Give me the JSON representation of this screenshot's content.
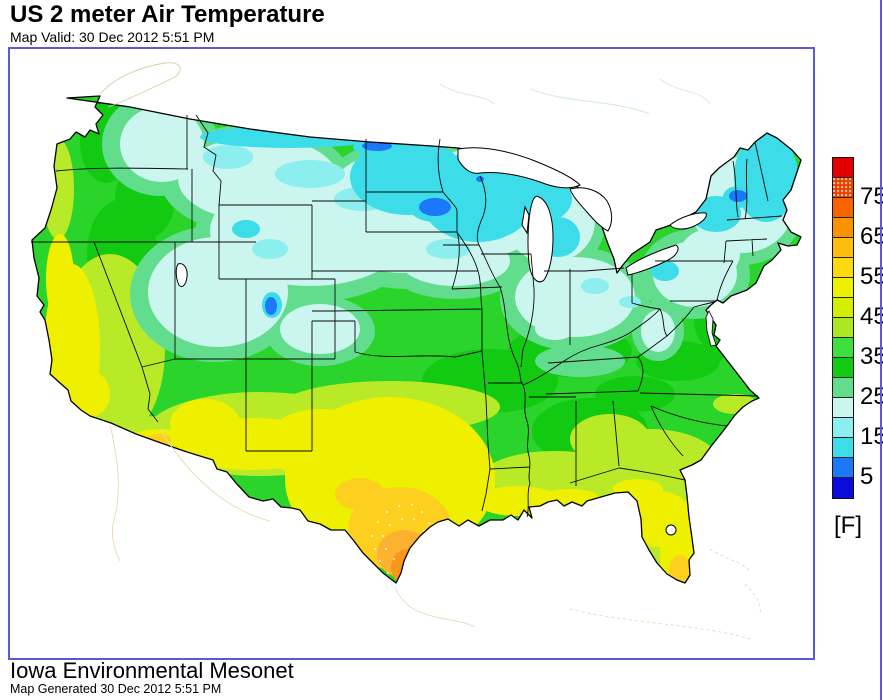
{
  "header": {
    "title": "US 2 meter Air Temperature",
    "valid": "Map Valid: 30 Dec 2012 5:51 PM"
  },
  "footer": {
    "source": "Iowa Environmental Mesonet",
    "generated": "Map Generated 30 Dec 2012 5:51 PM"
  },
  "colorbar": {
    "unit": "[F]",
    "ticks": [
      "75",
      "65",
      "55",
      "45",
      "35",
      "25",
      "15",
      "5"
    ],
    "segments": [
      {
        "range_f": "80-85",
        "color": "#e10000",
        "stipple": false
      },
      {
        "range_f": "75-80",
        "color": "#ef3c00",
        "stipple": true
      },
      {
        "range_f": "70-75",
        "color": "#f76300",
        "stipple": false
      },
      {
        "range_f": "65-70",
        "color": "#fa9200",
        "stipple": false
      },
      {
        "range_f": "60-65",
        "color": "#fcbd0e",
        "stipple": false
      },
      {
        "range_f": "55-60",
        "color": "#fdd80c",
        "stipple": false
      },
      {
        "range_f": "50-55",
        "color": "#eef000",
        "stipple": false
      },
      {
        "range_f": "45-50",
        "color": "#d4ee00",
        "stipple": false
      },
      {
        "range_f": "40-45",
        "color": "#abe822",
        "stipple": false
      },
      {
        "range_f": "35-40",
        "color": "#3ce03c",
        "stipple": false
      },
      {
        "range_f": "30-35",
        "color": "#12ca12",
        "stipple": false
      },
      {
        "range_f": "25-30",
        "color": "#62dd8d",
        "stipple": false
      },
      {
        "range_f": "20-25",
        "color": "#cbf5ef",
        "stipple": false
      },
      {
        "range_f": "15-20",
        "color": "#8ceeee",
        "stipple": false
      },
      {
        "range_f": "10-15",
        "color": "#3cdce8",
        "stipple": false
      },
      {
        "range_f": "5-10",
        "color": "#1b78f8",
        "stipple": false
      },
      {
        "range_f": "0-5",
        "color": "#0b0bdb",
        "stipple": false
      }
    ]
  },
  "map": {
    "region": "Continental United States",
    "frame_color": "#5a5ad8",
    "temperature_regions": [
      {
        "area": "pacific-northwest-and-interior-west-coast",
        "temp_f": "35-45",
        "color": "#12ca12"
      },
      {
        "area": "california-coast-and-central-valley",
        "temp_f": "50-55",
        "color": "#eef000"
      },
      {
        "area": "northern-rockies-great-basin-high-plains",
        "temp_f": "20-25",
        "color": "#cbf5ef"
      },
      {
        "area": "montana-canada-border-and-upper-midwest",
        "temp_f": "10-20",
        "color": "#3cdce8"
      },
      {
        "area": "cold-spots-central-minnesota-eastern-north-dakota-northern-vermont-southwest-wyoming",
        "temp_f": "5-10",
        "color": "#1b78f8"
      },
      {
        "area": "central-plains-midwest-tennessee-valley",
        "temp_f": "30-40",
        "color": "#12ca12"
      },
      {
        "area": "ohio-valley-pennsylvania",
        "temp_f": "20-25",
        "color": "#cbf5ef"
      },
      {
        "area": "desert-southwest-strip",
        "temp_f": "50-55",
        "color": "#eef000"
      },
      {
        "area": "texas-and-gulf-coast",
        "temp_f": "50-60",
        "color": "#fdd80c"
      },
      {
        "area": "south-texas-rio-grande-valley-warm-core",
        "temp_f": "65-70",
        "color": "#f9961c"
      },
      {
        "area": "southeast-interior",
        "temp_f": "35-45",
        "color": "#abe822"
      },
      {
        "area": "florida-peninsula",
        "temp_f": "50-60",
        "color": "#eef000"
      },
      {
        "area": "new-england-northern-new-york-maine",
        "temp_f": "10-25",
        "color": "#3cdce8"
      }
    ]
  }
}
